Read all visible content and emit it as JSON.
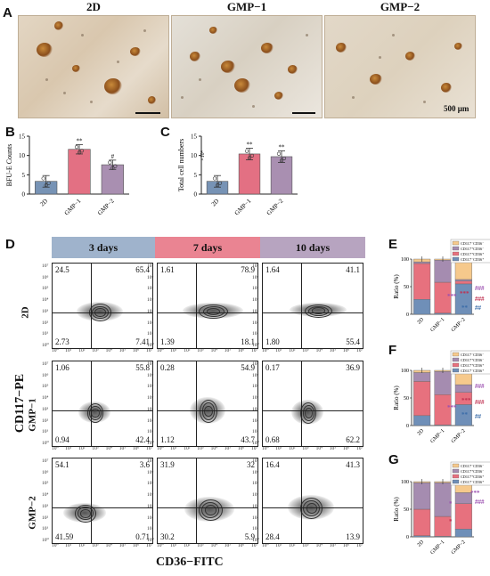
{
  "panels": {
    "A": "A",
    "B": "B",
    "C": "C",
    "D": "D",
    "E": "E",
    "F": "F",
    "G": "G"
  },
  "micrographs": {
    "headers": [
      "2D",
      "GMP−1",
      "GMP−2"
    ],
    "scale_label": "500 μm"
  },
  "chart_data": [
    {
      "type": "bar",
      "panel": "B",
      "categories": [
        "2D",
        "GMP−1",
        "GMP−2"
      ],
      "values": [
        3.3,
        11.6,
        7.6
      ],
      "errors": [
        1.5,
        1.2,
        1.2
      ],
      "ylabel": "BFU-E Counts",
      "ylim": [
        0,
        15
      ],
      "yticks": [
        0,
        5,
        10,
        15
      ],
      "bar_colors": [
        "#7793b5",
        "#e37083",
        "#a98fb1"
      ],
      "annotations": [
        "",
        "**",
        "#"
      ]
    },
    {
      "type": "bar",
      "panel": "C",
      "categories": [
        "2D",
        "GMP−1",
        "GMP−2"
      ],
      "values": [
        3.3,
        10.4,
        9.7
      ],
      "errors": [
        1.5,
        1.5,
        1.5
      ],
      "ylabel": "Total cell numbers",
      "yunit": "×10⁴",
      "ylim": [
        0,
        15
      ],
      "yticks": [
        0,
        5,
        10,
        15
      ],
      "bar_colors": [
        "#7793b5",
        "#e37083",
        "#a98fb1"
      ],
      "annotations": [
        "",
        "**",
        "**"
      ]
    },
    {
      "type": "table",
      "panel": "D",
      "title": "",
      "columns": [
        "3 days",
        "7 days",
        "10 days"
      ],
      "rows": [
        "2D",
        "GMP−1",
        "GMP−2"
      ],
      "quadrant_order": [
        "upper-left",
        "upper-right",
        "lower-left",
        "lower-right"
      ],
      "values": [
        [
          [
            "24.5",
            "65.4",
            "2.73",
            "7.41"
          ],
          [
            "1.61",
            "78.9",
            "1.39",
            "18.1"
          ],
          [
            "1.64",
            "41.1",
            "1.80",
            "55.4"
          ]
        ],
        [
          [
            "1.06",
            "55.8",
            "0.94",
            "42.4"
          ],
          [
            "0.28",
            "54.9",
            "1.12",
            "43.7"
          ],
          [
            "0.17",
            "36.9",
            "0.68",
            "62.2"
          ]
        ],
        [
          [
            "54.1",
            "3.6",
            "41.59",
            "0.71"
          ],
          [
            "31.9",
            "32",
            "30.2",
            "5.9"
          ],
          [
            "16.4",
            "41.3",
            "28.4",
            "13.9"
          ]
        ]
      ],
      "xlabel": "CD36−FITC",
      "ylabel": "CD117−PE",
      "axis_ticks": [
        "10⁰",
        "10¹",
        "10²",
        "10³",
        "10⁴",
        "10⁵",
        "10⁶",
        "10⁷"
      ]
    },
    {
      "type": "bar",
      "stacked": true,
      "panel": "E",
      "categories": [
        "2D",
        "GMP−1",
        "GMP−2"
      ],
      "ylabel": "Ratio (%)",
      "ylim": [
        0,
        100
      ],
      "yticks": [
        0,
        50,
        100
      ],
      "series": [
        {
          "name": "CD117⁻CD36⁺",
          "color": "#6f8fb8",
          "values": [
            27,
            2,
            55
          ]
        },
        {
          "name": "CD117⁺CD36⁺",
          "color": "#e7717e",
          "values": [
            65,
            56,
            5
          ]
        },
        {
          "name": "CD117⁺CD36⁻",
          "color": "#a58cb0",
          "values": [
            3,
            40,
            3
          ]
        },
        {
          "name": "CD117⁻CD36⁻",
          "color": "#f6c98c",
          "values": [
            5,
            2,
            37
          ]
        }
      ]
    },
    {
      "type": "bar",
      "stacked": true,
      "panel": "F",
      "categories": [
        "2D",
        "GMP−1",
        "GMP−2"
      ],
      "ylabel": "Ratio (%)",
      "ylim": [
        0,
        100
      ],
      "yticks": [
        0,
        50,
        100
      ],
      "series": [
        {
          "name": "CD117⁻CD36⁺",
          "color": "#6f8fb8",
          "values": [
            18,
            1,
            38
          ]
        },
        {
          "name": "CD117⁺CD36⁺",
          "color": "#e7717e",
          "values": [
            62,
            55,
            22
          ]
        },
        {
          "name": "CD117⁺CD36⁻",
          "color": "#a58cb0",
          "values": [
            16,
            42,
            14
          ]
        },
        {
          "name": "CD117⁻CD36⁻",
          "color": "#f6c98c",
          "values": [
            4,
            2,
            26
          ]
        }
      ]
    },
    {
      "type": "bar",
      "stacked": true,
      "panel": "G",
      "categories": [
        "2D",
        "GMP−1",
        "GMP−2"
      ],
      "ylabel": "Ratio (%)",
      "ylim": [
        0,
        100
      ],
      "yticks": [
        0,
        50,
        100
      ],
      "series": [
        {
          "name": "CD117⁻CD36⁺",
          "color": "#6f8fb8",
          "values": [
            2,
            1,
            14
          ]
        },
        {
          "name": "CD117⁺CD36⁺",
          "color": "#e7717e",
          "values": [
            48,
            36,
            46
          ]
        },
        {
          "name": "CD117⁺CD36⁻",
          "color": "#a58cb0",
          "values": [
            48,
            61,
            20
          ]
        },
        {
          "name": "CD117⁻CD36⁻",
          "color": "#f6c98c",
          "values": [
            2,
            2,
            20
          ]
        }
      ]
    }
  ],
  "significance": {
    "E": {
      "col2": "***",
      "col3_hash": "###",
      "col3_blue": "**",
      "col3_blue_hash": "##"
    },
    "F": {
      "col2": "***",
      "col3_hash": "###",
      "col3_blue": "**",
      "col3_blue_hash": "##"
    },
    "G": {
      "col2": "*",
      "col2b": "**",
      "col3": "***",
      "col3_hash": "###"
    }
  },
  "colors": {
    "blue": "#7793b5",
    "red": "#e37083",
    "purple": "#a98fb1",
    "orange": "#f6c98c",
    "header_blue": "#9fb3cc",
    "header_pink": "#ea8492",
    "header_purple": "#b7a4c0",
    "star_red": "#c03050",
    "star_purple": "#9b4fb0",
    "star_blue": "#3a6ca8"
  }
}
